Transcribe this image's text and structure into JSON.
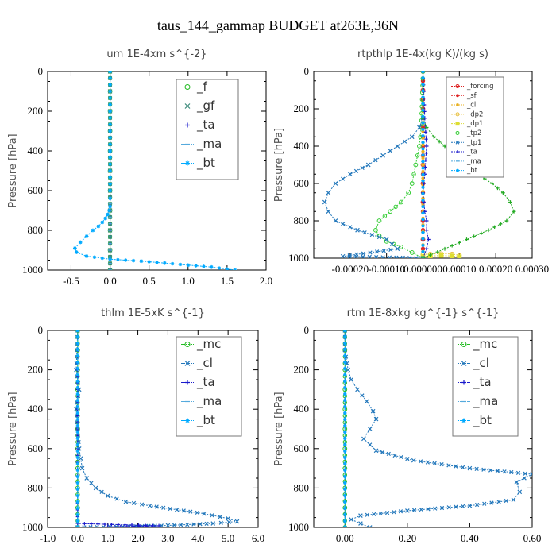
{
  "figure_title": "taus_144_gammap  BUDGET at263E,36N",
  "chart_data": [
    {
      "type": "line",
      "title": "um   1E-4xm s^{-2}",
      "ylabel": "Pressure [hPa]",
      "xlim": [
        -0.8,
        2.0
      ],
      "ylim": [
        1000,
        0
      ],
      "xticks": [
        -0.5,
        0.0,
        0.5,
        1.0,
        1.5,
        2.0
      ],
      "xtick_labels": [
        "-0.5",
        "0.0",
        "0.5",
        "1.0",
        "1.5",
        "2.0"
      ],
      "yticks": [
        0,
        200,
        400,
        600,
        800,
        1000
      ],
      "ytick_labels": [
        "0",
        "200",
        "400",
        "600",
        "800",
        "1000"
      ],
      "legend_position": "top-right",
      "series": [
        {
          "name": "_f",
          "color": "#22bb22",
          "marker": "o",
          "x": [
            0,
            0,
            0,
            0,
            0,
            0,
            0,
            0,
            0,
            0,
            0
          ],
          "y": [
            0,
            100,
            200,
            300,
            400,
            500,
            600,
            700,
            800,
            900,
            1000
          ]
        },
        {
          "name": "_gf",
          "color": "#3a8a7a",
          "marker": "x",
          "x": [
            0,
            0,
            0,
            0,
            0,
            0,
            0,
            0,
            0,
            0,
            0
          ],
          "y": [
            0,
            100,
            200,
            300,
            400,
            500,
            600,
            700,
            800,
            900,
            1000
          ]
        },
        {
          "name": "_ta",
          "color": "#1a1acc",
          "marker": "+",
          "x": [
            0,
            0,
            0,
            0,
            0,
            0,
            0,
            0,
            0,
            0,
            0
          ],
          "y": [
            0,
            100,
            200,
            300,
            400,
            500,
            600,
            700,
            800,
            900,
            1000
          ]
        },
        {
          "name": "_ma",
          "color": "#55aadd",
          "marker": "-",
          "x": [
            0,
            0,
            0,
            0,
            0,
            0,
            0,
            0,
            0,
            0,
            0
          ],
          "y": [
            0,
            100,
            200,
            300,
            400,
            500,
            600,
            700,
            800,
            900,
            1000
          ]
        },
        {
          "name": "_bt",
          "color": "#00aaff",
          "marker": "*",
          "x": [
            0,
            0,
            0,
            0,
            0,
            -0.01,
            -0.03,
            -0.06,
            -0.1,
            -0.15,
            -0.22,
            -0.3,
            -0.38,
            -0.45,
            -0.43,
            -0.3,
            0.0,
            0.4,
            0.7,
            1.0,
            1.3,
            1.6
          ],
          "y": [
            0,
            200,
            400,
            600,
            680,
            700,
            720,
            740,
            760,
            780,
            800,
            830,
            860,
            890,
            910,
            930,
            945,
            955,
            965,
            975,
            985,
            1000
          ]
        }
      ]
    },
    {
      "type": "line",
      "title": "rtpthlp   1E-4x(kg K)/(kg s)",
      "ylabel": "Pressure [hPa]",
      "xlim": [
        -0.0003,
        0.0003
      ],
      "ylim": [
        1000,
        0
      ],
      "xticks": [
        -0.0002,
        -0.0001,
        0.0,
        0.0001,
        0.0002,
        0.0003
      ],
      "xtick_labels": [
        "-0.00020",
        "-0.00010",
        "0.000000",
        "0.00010",
        "0.00020",
        "0.00030"
      ],
      "yticks": [
        0,
        200,
        400,
        600,
        800,
        1000
      ],
      "ytick_labels": [
        "0",
        "200",
        "400",
        "600",
        "800",
        "1000"
      ],
      "legend_position": "top-right",
      "series": [
        {
          "name": "_forcing",
          "color": "#dd2222",
          "marker": "o",
          "x": [
            0,
            0,
            0,
            0,
            0,
            0,
            0,
            0,
            0,
            0,
            0
          ],
          "y": [
            0,
            100,
            200,
            300,
            400,
            500,
            600,
            700,
            800,
            900,
            1000
          ]
        },
        {
          "name": "_sf",
          "color": "#dd2222",
          "marker": "*",
          "x": [
            0,
            0,
            0,
            0,
            0,
            0,
            0,
            0,
            0,
            0,
            0
          ],
          "y": [
            0,
            100,
            200,
            300,
            400,
            500,
            600,
            700,
            800,
            900,
            1000
          ]
        },
        {
          "name": "_cl",
          "color": "#e8b020",
          "marker": "*",
          "x": [
            0,
            0,
            0
          ],
          "y": [
            0,
            500,
            1000
          ]
        },
        {
          "name": "_dp2",
          "color": "#e8c040",
          "marker": "o",
          "x": [
            0,
            2e-05,
            5e-05,
            8e-05,
            0.0001
          ],
          "y": [
            980,
            978,
            976,
            978,
            985
          ]
        },
        {
          "name": "_dp1",
          "color": "#dddd33",
          "marker": "s",
          "x": [
            0,
            2e-05,
            5e-05,
            8e-05,
            0.0001
          ],
          "y": [
            990,
            988,
            986,
            988,
            992
          ]
        },
        {
          "name": "_tp2",
          "color": "#33cc33",
          "marker": "o",
          "x": [
            0,
            -5e-06,
            -1e-05,
            -2e-05,
            -3e-05,
            -4e-05,
            -6e-05,
            -9e-05,
            -0.00012,
            -0.00013,
            -0.00012,
            -0.0001,
            -6e-05,
            -3e-05,
            0
          ],
          "y": [
            0,
            300,
            400,
            500,
            600,
            650,
            700,
            750,
            800,
            850,
            880,
            910,
            940,
            970,
            1000
          ]
        },
        {
          "name": "_tp1",
          "color": "#2277bb",
          "marker": "x",
          "x": [
            0,
            -1e-05,
            -3e-05,
            -7e-05,
            -0.00011,
            -0.00015,
            -0.0002,
            -0.00024,
            -0.00026,
            -0.00027,
            -0.00026,
            -0.00024,
            -0.00018,
            -0.0001,
            -7e-05,
            -0.00022,
            0
          ],
          "y": [
            250,
            300,
            350,
            400,
            450,
            500,
            550,
            600,
            650,
            700,
            750,
            800,
            850,
            900,
            950,
            990,
            1000
          ]
        },
        {
          "name": "_ta",
          "color": "#1a1acc",
          "marker": "+",
          "x": [
            0,
            5e-06,
            1e-05,
            5e-06,
            0,
            5e-06,
            1e-05,
            1e-05,
            1.5e-05,
            1e-05,
            0
          ],
          "y": [
            0,
            250,
            400,
            550,
            650,
            750,
            800,
            850,
            900,
            950,
            1000
          ]
        },
        {
          "name": "_ma",
          "color": "#55aadd",
          "marker": "-",
          "x": [
            0,
            0
          ],
          "y": [
            0,
            1000
          ]
        },
        {
          "name": "_bt",
          "color": "#00aaff",
          "marker": "*",
          "x": [
            0,
            0
          ],
          "y": [
            0,
            1000
          ]
        },
        {
          "name": "",
          "color": "#22aa22",
          "marker": "+",
          "x": [
            0,
            1e-05,
            3e-05,
            6e-05,
            9e-05,
            0.00012,
            0.00015,
            0.00019,
            0.00022,
            0.00024,
            0.00025,
            0.00023,
            0.00018,
            0.00012,
            6e-05,
            0
          ],
          "y": [
            250,
            300,
            350,
            400,
            450,
            500,
            550,
            600,
            650,
            700,
            750,
            800,
            850,
            900,
            950,
            1000
          ]
        }
      ]
    },
    {
      "type": "line",
      "title": "thlm   1E-5xK  s^{-1}",
      "ylabel": "Pressure [hPa]",
      "xlim": [
        -1.0,
        6.0
      ],
      "ylim": [
        1000,
        0
      ],
      "xticks": [
        -1.0,
        0.0,
        1.0,
        2.0,
        3.0,
        4.0,
        5.0,
        6.0
      ],
      "xtick_labels": [
        "-1.0",
        "0.0",
        "1.0",
        "2.0",
        "3.0",
        "4.0",
        "5.0",
        "6.0"
      ],
      "yticks": [
        0,
        200,
        400,
        600,
        800,
        1000
      ],
      "ytick_labels": [
        "0",
        "200",
        "400",
        "600",
        "800",
        "1000"
      ],
      "legend_position": "top-right",
      "series": [
        {
          "name": "_mc",
          "color": "#22bb22",
          "marker": "o",
          "x": [
            0,
            0,
            0,
            0,
            0,
            0,
            0,
            0,
            0,
            0,
            0
          ],
          "y": [
            0,
            100,
            200,
            300,
            400,
            500,
            600,
            700,
            800,
            900,
            1000
          ]
        },
        {
          "name": "_cl",
          "color": "#2277bb",
          "marker": "x",
          "x": [
            0,
            -0.05,
            0.05,
            -0.05,
            0.0,
            0.05,
            0.1,
            0.15,
            0.3,
            0.6,
            1.0,
            1.6,
            2.4,
            3.3,
            4.2,
            5.0,
            5.3,
            4.5,
            3.0,
            1.5,
            0.0
          ],
          "y": [
            0,
            200,
            300,
            400,
            500,
            600,
            650,
            700,
            750,
            800,
            840,
            870,
            890,
            910,
            930,
            955,
            970,
            980,
            990,
            996,
            1000
          ]
        },
        {
          "name": "_ta",
          "color": "#1a1acc",
          "marker": "+",
          "x": [
            0,
            0,
            0,
            2.7,
            1.0
          ],
          "y": [
            0,
            600,
            980,
            992,
            998
          ]
        },
        {
          "name": "_ma",
          "color": "#55aadd",
          "marker": "-",
          "x": [
            0,
            0
          ],
          "y": [
            0,
            1000
          ]
        },
        {
          "name": "_bt",
          "color": "#00aaff",
          "marker": "*",
          "x": [
            0,
            0
          ],
          "y": [
            0,
            1000
          ]
        }
      ]
    },
    {
      "type": "line",
      "title": "rtm   1E-8xkg kg^{-1} s^{-1}",
      "ylabel": "Pressure [hPa]",
      "xlim": [
        -0.1,
        0.6
      ],
      "ylim": [
        1000,
        0
      ],
      "xticks": [
        0.0,
        0.2,
        0.4,
        0.6
      ],
      "xtick_labels": [
        "0.00",
        "0.20",
        "0.40",
        "0.60"
      ],
      "yticks": [
        0,
        200,
        400,
        600,
        800,
        1000
      ],
      "ytick_labels": [
        "0",
        "200",
        "400",
        "600",
        "800",
        "1000"
      ],
      "legend_position": "top-right",
      "series": [
        {
          "name": "_mc",
          "color": "#22bb22",
          "marker": "o",
          "x": [
            0,
            0,
            0,
            0,
            0,
            0,
            0,
            0,
            0,
            0,
            0
          ],
          "y": [
            0,
            100,
            200,
            300,
            400,
            500,
            600,
            700,
            800,
            900,
            1000
          ]
        },
        {
          "name": "_cl",
          "color": "#2277bb",
          "marker": "x",
          "x": [
            0,
            0.0,
            0.01,
            0.02,
            0.04,
            0.07,
            0.09,
            0.1,
            0.08,
            0.06,
            0.1,
            0.22,
            0.4,
            0.6,
            0.55,
            0.56,
            0.54,
            0.4,
            0.2,
            0.05,
            0.02,
            0.05,
            0.08
          ],
          "y": [
            0,
            100,
            200,
            250,
            300,
            360,
            410,
            450,
            500,
            550,
            610,
            660,
            700,
            730,
            770,
            820,
            860,
            890,
            915,
            940,
            960,
            980,
            1000
          ]
        },
        {
          "name": "_ta",
          "color": "#1a1acc",
          "marker": "+",
          "x": [
            0,
            0
          ],
          "y": [
            0,
            1000
          ]
        },
        {
          "name": "_ma",
          "color": "#55aadd",
          "marker": "-",
          "x": [
            0,
            0
          ],
          "y": [
            0,
            1000
          ]
        },
        {
          "name": "_bt",
          "color": "#00aaff",
          "marker": "*",
          "x": [
            0,
            0
          ],
          "y": [
            0,
            1000
          ]
        }
      ]
    }
  ]
}
